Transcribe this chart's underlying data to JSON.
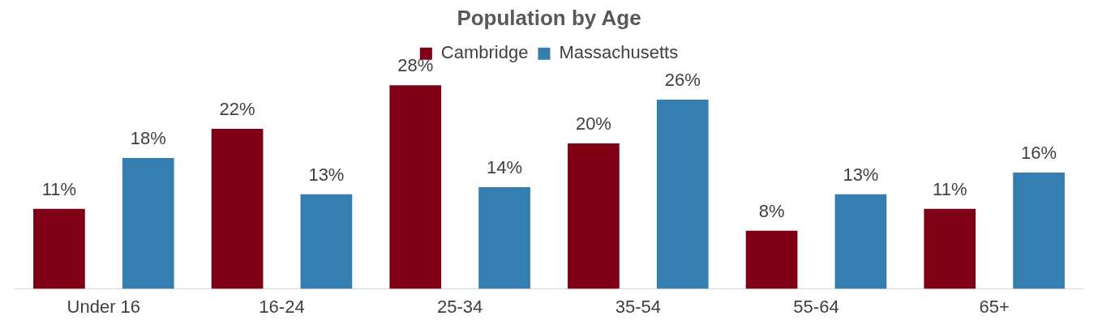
{
  "chart_data": {
    "type": "bar",
    "title": "Population by Age",
    "legend": "top",
    "categories": [
      "Under 16",
      "16-24",
      "25-34",
      "35-54",
      "55-64",
      "65+"
    ],
    "series": [
      {
        "name": "Cambridge",
        "color": "#7f0015",
        "values": [
          11,
          22,
          28,
          20,
          8,
          11
        ],
        "value_labels": [
          "11%",
          "22%",
          "28%",
          "20%",
          "8%",
          "11%"
        ]
      },
      {
        "name": "Massachusetts",
        "color": "#357fb0",
        "values": [
          18,
          13,
          14,
          26,
          13,
          16
        ],
        "value_labels": [
          "18%",
          "13%",
          "14%",
          "26%",
          "13%",
          "16%"
        ]
      }
    ]
  }
}
